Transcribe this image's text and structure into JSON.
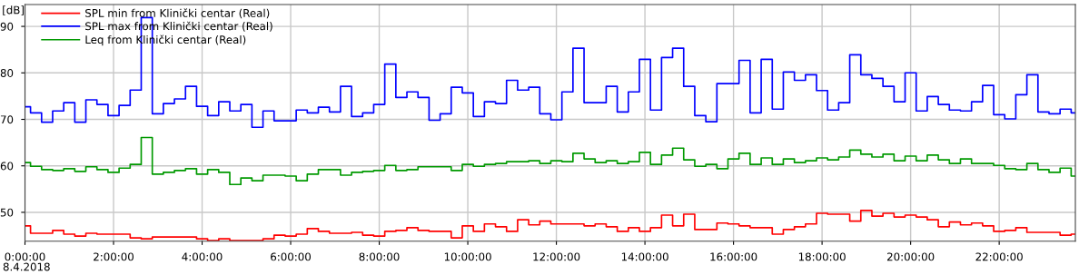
{
  "chart_data": {
    "type": "step",
    "ylabel": "[dB]",
    "x": [
      0,
      0.125,
      0.375,
      0.625,
      0.875,
      1.125,
      1.375,
      1.625,
      1.875,
      2.125,
      2.375,
      2.625,
      2.875,
      3.125,
      3.375,
      3.625,
      3.875,
      4.125,
      4.375,
      4.625,
      4.875,
      5.125,
      5.375,
      5.625,
      5.875,
      6.125,
      6.375,
      6.625,
      6.875,
      7.125,
      7.375,
      7.625,
      7.875,
      8.125,
      8.375,
      8.625,
      8.875,
      9.125,
      9.375,
      9.625,
      9.875,
      10.125,
      10.375,
      10.625,
      10.875,
      11.125,
      11.375,
      11.625,
      11.875,
      12.125,
      12.375,
      12.625,
      12.875,
      13.125,
      13.375,
      13.625,
      13.875,
      14.125,
      14.375,
      14.625,
      14.875,
      15.125,
      15.375,
      15.625,
      15.875,
      16.125,
      16.375,
      16.625,
      16.875,
      17.125,
      17.375,
      17.625,
      17.875,
      18.125,
      18.375,
      18.625,
      18.875,
      19.125,
      19.375,
      19.625,
      19.875,
      20.125,
      20.375,
      20.625,
      20.875,
      21.125,
      21.375,
      21.625,
      21.875,
      22.125,
      22.375,
      22.625,
      22.875,
      23.125,
      23.375,
      23.625
    ],
    "series": [
      {
        "name": "SPL min from Klinički centar (Real)",
        "color": "#ff0000",
        "values": [
          47.1,
          45.5,
          45.5,
          46.1,
          45.3,
          44.9,
          45.5,
          45.3,
          45.3,
          45.3,
          44.5,
          44.3,
          44.7,
          44.7,
          44.7,
          44.7,
          44.3,
          43.9,
          44.3,
          43.9,
          43.9,
          43.9,
          44.3,
          45.1,
          44.9,
          45.3,
          46.5,
          45.9,
          45.5,
          45.5,
          45.7,
          45.1,
          44.9,
          45.9,
          46.1,
          46.7,
          46.1,
          45.9,
          45.9,
          44.5,
          47.1,
          45.9,
          47.5,
          46.9,
          45.9,
          48.4,
          47.3,
          48.1,
          47.5,
          47.5,
          47.5,
          47.1,
          47.5,
          46.9,
          45.9,
          46.7,
          45.9,
          46.7,
          49.4,
          47.1,
          49.6,
          46.3,
          46.3,
          47.7,
          47.5,
          47.1,
          46.7,
          46.7,
          45.3,
          46.3,
          46.9,
          47.5,
          49.8,
          49.6,
          49.6,
          48.1,
          50.4,
          49.2,
          49.8,
          49.0,
          49.4,
          49.0,
          48.4,
          46.9,
          47.9,
          47.3,
          47.7,
          47.1,
          45.9,
          46.1,
          46.7,
          45.7,
          45.7,
          45.7,
          45.1,
          45.3
        ]
      },
      {
        "name": "SPL max from Klinički centar (Real)",
        "color": "#0000ff",
        "values": [
          72.7,
          71.4,
          69.4,
          71.8,
          73.6,
          69.4,
          74.2,
          73.2,
          70.8,
          73.0,
          76.3,
          91.9,
          71.2,
          73.4,
          74.4,
          77.1,
          72.8,
          70.8,
          73.8,
          71.8,
          73.2,
          68.3,
          71.8,
          69.7,
          69.7,
          72.0,
          71.4,
          72.6,
          71.6,
          77.1,
          70.6,
          71.4,
          73.2,
          81.9,
          74.7,
          75.9,
          74.7,
          69.8,
          71.2,
          76.9,
          75.7,
          70.6,
          73.8,
          73.4,
          78.4,
          76.3,
          76.9,
          71.2,
          69.9,
          75.9,
          85.3,
          73.6,
          73.6,
          77.1,
          71.6,
          75.9,
          82.9,
          72.0,
          83.3,
          85.3,
          77.1,
          70.8,
          69.5,
          77.7,
          77.7,
          82.7,
          71.4,
          82.9,
          72.2,
          80.2,
          78.4,
          79.6,
          76.2,
          72.0,
          73.6,
          83.9,
          79.6,
          78.8,
          77.1,
          73.8,
          80.0,
          71.8,
          74.9,
          73.2,
          72.0,
          71.8,
          73.8,
          77.3,
          71.0,
          70.1,
          75.3,
          79.6,
          71.6,
          71.2,
          72.2,
          71.4
        ]
      },
      {
        "name": "Leq from Klinički centar (Real)",
        "color": "#009900",
        "values": [
          60.7,
          59.9,
          59.2,
          59.0,
          59.4,
          58.8,
          59.8,
          59.2,
          58.6,
          59.5,
          60.3,
          66.1,
          58.2,
          58.6,
          59.0,
          59.4,
          58.2,
          59.2,
          58.6,
          56.0,
          57.4,
          56.8,
          58.0,
          58.0,
          57.8,
          56.8,
          58.2,
          59.2,
          59.2,
          58.0,
          58.6,
          58.8,
          59.0,
          60.1,
          59.0,
          59.2,
          59.8,
          59.8,
          59.8,
          59.0,
          60.3,
          59.9,
          60.3,
          60.5,
          60.9,
          60.9,
          61.1,
          60.5,
          61.1,
          60.9,
          62.7,
          61.5,
          60.7,
          61.1,
          60.5,
          60.9,
          62.9,
          60.3,
          62.3,
          63.8,
          61.3,
          59.9,
          60.3,
          59.4,
          61.5,
          62.7,
          60.3,
          61.7,
          60.3,
          61.5,
          60.7,
          61.1,
          61.7,
          61.3,
          61.9,
          63.4,
          62.5,
          61.9,
          62.5,
          61.1,
          62.1,
          61.1,
          62.3,
          61.3,
          60.5,
          61.5,
          60.5,
          60.5,
          60.1,
          59.4,
          59.2,
          60.5,
          59.2,
          58.6,
          59.5,
          57.8
        ]
      }
    ],
    "xlim": [
      0,
      23.72
    ],
    "ylim": [
      43.8,
      94.7
    ],
    "xticks": [
      {
        "value": 0,
        "label": "0:00:00"
      },
      {
        "value": 2,
        "label": "2:00:00"
      },
      {
        "value": 4,
        "label": "4:00:00"
      },
      {
        "value": 6,
        "label": "6:00:00"
      },
      {
        "value": 8,
        "label": "8:00:00"
      },
      {
        "value": 10,
        "label": "10:00:00"
      },
      {
        "value": 12,
        "label": "12:00:00"
      },
      {
        "value": 14,
        "label": "14:00:00"
      },
      {
        "value": 16,
        "label": "16:00:00"
      },
      {
        "value": 18,
        "label": "18:00:00"
      },
      {
        "value": 20,
        "label": "20:00:00"
      },
      {
        "value": 22,
        "label": "22:00:00"
      }
    ],
    "yticks": [
      50,
      60,
      70,
      80,
      90
    ],
    "annotations": [
      "8.4.2018"
    ],
    "grid": true,
    "legend": "top left",
    "line_style": "solid"
  }
}
